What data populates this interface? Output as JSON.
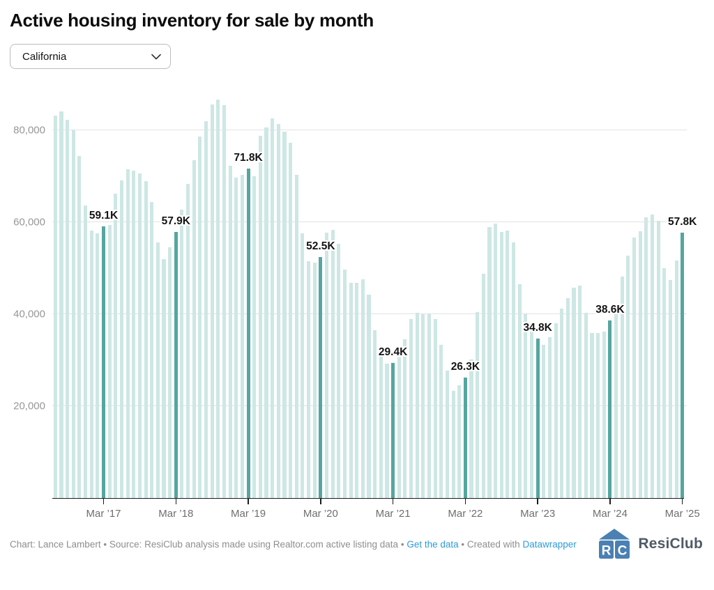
{
  "header": {
    "title": "Active housing inventory for sale by month",
    "region_selector": {
      "value": "California"
    }
  },
  "chart_data": {
    "type": "bar",
    "title": "Active housing inventory for sale by month",
    "region": "California",
    "start": {
      "year": 2016,
      "month": "Jul"
    },
    "end": {
      "year": 2025,
      "month": "Mar"
    },
    "unit": "active listings",
    "values_thousands": [
      83.3,
      84.1,
      82.4,
      80.0,
      74.4,
      63.7,
      58.3,
      57.7,
      59.1,
      59.4,
      66.2,
      69.2,
      71.6,
      71.3,
      70.6,
      69.0,
      64.5,
      55.6,
      52.0,
      54.6,
      57.9,
      62.8,
      68.4,
      73.6,
      78.7,
      82.0,
      85.7,
      86.8,
      85.5,
      72.3,
      69.7,
      70.3,
      71.8,
      70.1,
      78.9,
      80.7,
      82.7,
      81.5,
      79.7,
      77.3,
      70.4,
      57.7,
      51.5,
      51.2,
      52.5,
      57.8,
      58.4,
      55.4,
      49.8,
      46.8,
      46.9,
      47.6,
      44.3,
      36.5,
      31.1,
      29.2,
      29.4,
      30.7,
      34.6,
      39.0,
      40.3,
      40.0,
      40.1,
      39.0,
      33.4,
      27.8,
      23.3,
      24.5,
      26.3,
      30.2,
      40.5,
      48.8,
      59.0,
      59.8,
      58.0,
      58.3,
      55.7,
      46.6,
      40.1,
      36.3,
      34.8,
      33.3,
      35.0,
      38.0,
      41.3,
      43.6,
      45.8,
      46.2,
      40.4,
      35.9,
      36.0,
      36.3,
      38.6,
      40.0,
      48.3,
      52.8,
      56.7,
      58.1,
      61.1,
      61.8,
      60.4,
      50.0,
      47.4,
      51.7,
      57.8
    ],
    "highlight_indices": [
      8,
      20,
      32,
      44,
      56,
      68,
      80,
      92,
      104
    ],
    "annotations": [
      {
        "index": 8,
        "label": "59.1K"
      },
      {
        "index": 20,
        "label": "57.9K"
      },
      {
        "index": 32,
        "label": "71.8K"
      },
      {
        "index": 44,
        "label": "52.5K"
      },
      {
        "index": 56,
        "label": "29.4K"
      },
      {
        "index": 68,
        "label": "26.3K"
      },
      {
        "index": 80,
        "label": "34.8K"
      },
      {
        "index": 92,
        "label": "38.6K"
      },
      {
        "index": 104,
        "label": "57.8K"
      }
    ],
    "x_axis": {
      "tick_indices": [
        8,
        20,
        32,
        44,
        56,
        68,
        80,
        92,
        104
      ],
      "tick_labels": [
        "Mar ’17",
        "Mar ’18",
        "Mar ’19",
        "Mar ’20",
        "Mar ’21",
        "Mar ’22",
        "Mar ’23",
        "Mar ’24",
        "Mar ’25"
      ]
    },
    "y_axis": {
      "ticks_thousands": [
        20,
        40,
        60,
        80
      ],
      "tick_labels": [
        "20,000",
        "40,000",
        "60,000",
        "80,000"
      ]
    },
    "ylim_thousands": [
      0,
      87.2
    ],
    "grid": true,
    "legend": "none",
    "colors": {
      "bar_light": "#cde7e4",
      "bar_dark": "#55a6a0"
    }
  },
  "footer": {
    "credit": "Chart: Lance Lambert",
    "separator": "•",
    "source": "Source: ResiClub analysis made using Realtor.com active listing data",
    "get_data_link": "Get the data",
    "created_prefix": "Created with",
    "datawrapper_link": "Datawrapper",
    "logo_text": "ResiClub",
    "logo_letters": "RC"
  },
  "colors": {
    "accent_teal": "#55a6a0",
    "light_teal": "#cde7e4",
    "link_blue": "#2e9bd6",
    "logo_blue": "#4a80b2",
    "axis_gray": "#979797"
  }
}
